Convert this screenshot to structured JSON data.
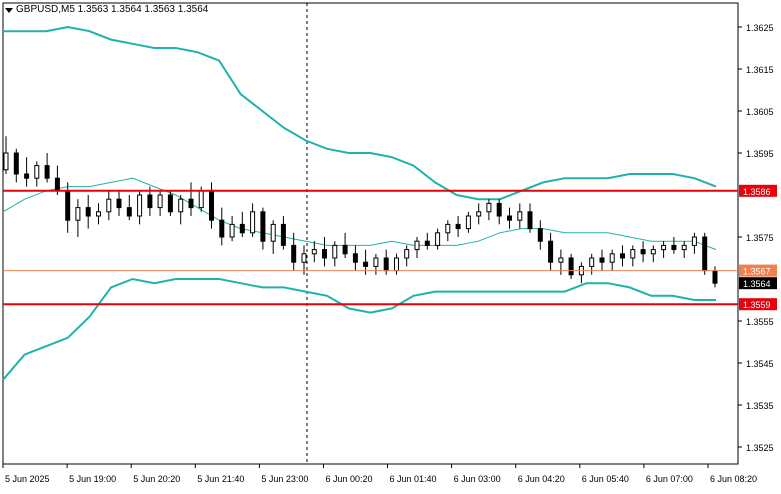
{
  "chart_title": "GBPUSD,M5  1.3563 1.3564 1.3563 1.3564",
  "chart_data": {
    "type": "candlestick",
    "symbol": "GBPUSD",
    "timeframe": "M5",
    "ohlc_header": "1.3563 1.3564 1.3563 1.3564",
    "y_ticks": [
      "1.3625",
      "1.3615",
      "1.3605",
      "1.3595",
      "1.3575",
      "1.3555",
      "1.3545",
      "1.3535",
      "1.3525"
    ],
    "x_ticks": [
      "5 Jun 2025",
      "5 Jun 19:00",
      "5 Jun 20:20",
      "5 Jun 21:40",
      "5 Jun 23:00",
      "6 Jun 00:20",
      "6 Jun 01:40",
      "6 Jun 03:00",
      "6 Jun 04:20",
      "6 Jun 05:40",
      "6 Jun 07:00",
      "6 Jun 08:20"
    ],
    "ylim": [
      1.3521,
      1.3628
    ],
    "horizontal_lines": [
      {
        "label": "1.3586",
        "price": 1.3586,
        "color": "#e8000b"
      },
      {
        "label": "1.3567",
        "price": 1.3567,
        "color": "#f08050"
      },
      {
        "label": "1.3559",
        "price": 1.3559,
        "color": "#e8000b"
      }
    ],
    "current_price_label": "1.3564",
    "current_price": 1.3564,
    "vertical_divider_time": "6 Jun 00:00",
    "bollinger_upper": [
      1.3624,
      1.3624,
      1.3624,
      1.3625,
      1.3624,
      1.3622,
      1.3621,
      1.362,
      1.362,
      1.3619,
      1.3617,
      1.3609,
      1.3605,
      1.3601,
      1.3598,
      1.3596,
      1.3595,
      1.3595,
      1.3594,
      1.3592,
      1.3588,
      1.3585,
      1.3584,
      1.3584,
      1.3586,
      1.3588,
      1.3589,
      1.3589,
      1.3589,
      1.359,
      1.359,
      1.359,
      1.3589,
      1.3587
    ],
    "bollinger_middle": [
      1.3581,
      1.3584,
      1.3586,
      1.3587,
      1.3587,
      1.3588,
      1.3589,
      1.3587,
      1.3585,
      1.3582,
      1.3579,
      1.3577,
      1.3576,
      1.3575,
      1.3574,
      1.3573,
      1.3573,
      1.3573,
      1.3574,
      1.3573,
      1.3573,
      1.3573,
      1.3574,
      1.3576,
      1.3577,
      1.3577,
      1.3576,
      1.3576,
      1.3576,
      1.3575,
      1.3574,
      1.3574,
      1.3574,
      1.3572
    ],
    "bollinger_lower": [
      1.3541,
      1.3547,
      1.3549,
      1.3551,
      1.3556,
      1.3563,
      1.3565,
      1.3564,
      1.3565,
      1.3565,
      1.3565,
      1.3564,
      1.3563,
      1.3563,
      1.3562,
      1.3561,
      1.3558,
      1.3557,
      1.3558,
      1.3561,
      1.3562,
      1.3562,
      1.3562,
      1.3562,
      1.3562,
      1.3562,
      1.3562,
      1.3564,
      1.3564,
      1.3563,
      1.3561,
      1.3561,
      1.356,
      1.356
    ],
    "candles": [
      [
        1.3591,
        1.3599,
        1.359,
        1.3595
      ],
      [
        1.3595,
        1.3596,
        1.3588,
        1.359
      ],
      [
        1.359,
        1.3594,
        1.3587,
        1.3589
      ],
      [
        1.3589,
        1.3593,
        1.3587,
        1.3592
      ],
      [
        1.3592,
        1.3595,
        1.3588,
        1.3589
      ],
      [
        1.3589,
        1.3592,
        1.3585,
        1.3586
      ],
      [
        1.3586,
        1.3588,
        1.3576,
        1.3579
      ],
      [
        1.3579,
        1.3584,
        1.3575,
        1.3582
      ],
      [
        1.3582,
        1.3585,
        1.3577,
        1.358
      ],
      [
        1.358,
        1.3583,
        1.3578,
        1.3581
      ],
      [
        1.3581,
        1.3586,
        1.3579,
        1.3584
      ],
      [
        1.3584,
        1.3586,
        1.358,
        1.3582
      ],
      [
        1.3582,
        1.3585,
        1.3579,
        1.358
      ],
      [
        1.358,
        1.3586,
        1.3578,
        1.3585
      ],
      [
        1.3585,
        1.3587,
        1.358,
        1.3582
      ],
      [
        1.3582,
        1.3586,
        1.358,
        1.3585
      ],
      [
        1.3585,
        1.3586,
        1.358,
        1.3581
      ],
      [
        1.3581,
        1.3585,
        1.3578,
        1.3584
      ],
      [
        1.3584,
        1.3588,
        1.358,
        1.3582
      ],
      [
        1.3582,
        1.3587,
        1.3581,
        1.3586
      ],
      [
        1.3586,
        1.3588,
        1.3577,
        1.3579
      ],
      [
        1.3579,
        1.3582,
        1.3573,
        1.3575
      ],
      [
        1.3575,
        1.358,
        1.3574,
        1.3578
      ],
      [
        1.3578,
        1.3581,
        1.3575,
        1.3576
      ],
      [
        1.3576,
        1.3583,
        1.3575,
        1.3581
      ],
      [
        1.3581,
        1.3582,
        1.3572,
        1.3574
      ],
      [
        1.3574,
        1.3579,
        1.3571,
        1.3578
      ],
      [
        1.3578,
        1.358,
        1.3572,
        1.3573
      ],
      [
        1.3573,
        1.3576,
        1.3567,
        1.3569
      ],
      [
        1.3569,
        1.3573,
        1.3566,
        1.3571
      ],
      [
        1.3571,
        1.3574,
        1.3569,
        1.3572
      ],
      [
        1.3572,
        1.3575,
        1.3568,
        1.357
      ],
      [
        1.357,
        1.3574,
        1.3568,
        1.3573
      ],
      [
        1.3573,
        1.3576,
        1.357,
        1.3571
      ],
      [
        1.3571,
        1.3573,
        1.3567,
        1.3569
      ],
      [
        1.3569,
        1.3572,
        1.3566,
        1.3568
      ],
      [
        1.3568,
        1.3571,
        1.3566,
        1.357
      ],
      [
        1.357,
        1.3572,
        1.3566,
        1.3567
      ],
      [
        1.3567,
        1.3571,
        1.3566,
        1.357
      ],
      [
        1.357,
        1.3573,
        1.3568,
        1.3572
      ],
      [
        1.3572,
        1.3575,
        1.357,
        1.3574
      ],
      [
        1.3574,
        1.3576,
        1.3572,
        1.3573
      ],
      [
        1.3573,
        1.3577,
        1.3572,
        1.3576
      ],
      [
        1.3576,
        1.3579,
        1.3574,
        1.3578
      ],
      [
        1.3578,
        1.358,
        1.3575,
        1.3577
      ],
      [
        1.3577,
        1.3581,
        1.3576,
        1.358
      ],
      [
        1.358,
        1.3583,
        1.3578,
        1.3581
      ],
      [
        1.3581,
        1.3584,
        1.3579,
        1.3583
      ],
      [
        1.3583,
        1.3584,
        1.3578,
        1.358
      ],
      [
        1.358,
        1.3582,
        1.3577,
        1.3579
      ],
      [
        1.3579,
        1.3583,
        1.3577,
        1.3581
      ],
      [
        1.3581,
        1.3583,
        1.3576,
        1.3577
      ],
      [
        1.3577,
        1.3579,
        1.3572,
        1.3574
      ],
      [
        1.3574,
        1.3576,
        1.3567,
        1.3569
      ],
      [
        1.3569,
        1.3572,
        1.3566,
        1.357
      ],
      [
        1.357,
        1.3571,
        1.3565,
        1.3566
      ],
      [
        1.3566,
        1.3569,
        1.3564,
        1.3568
      ],
      [
        1.3568,
        1.3571,
        1.3566,
        1.357
      ],
      [
        1.357,
        1.3572,
        1.3567,
        1.3569
      ],
      [
        1.3569,
        1.3572,
        1.3567,
        1.3571
      ],
      [
        1.3571,
        1.3573,
        1.3568,
        1.357
      ],
      [
        1.357,
        1.3573,
        1.3568,
        1.3572
      ],
      [
        1.3572,
        1.3574,
        1.3569,
        1.3571
      ],
      [
        1.3571,
        1.3573,
        1.3569,
        1.3572
      ],
      [
        1.3572,
        1.3574,
        1.357,
        1.3573
      ],
      [
        1.3573,
        1.3575,
        1.3571,
        1.3572
      ],
      [
        1.3572,
        1.3574,
        1.357,
        1.3573
      ],
      [
        1.3573,
        1.3576,
        1.3571,
        1.3575
      ],
      [
        1.3575,
        1.3576,
        1.3566,
        1.3567
      ],
      [
        1.3567,
        1.3568,
        1.3563,
        1.3564
      ]
    ]
  }
}
